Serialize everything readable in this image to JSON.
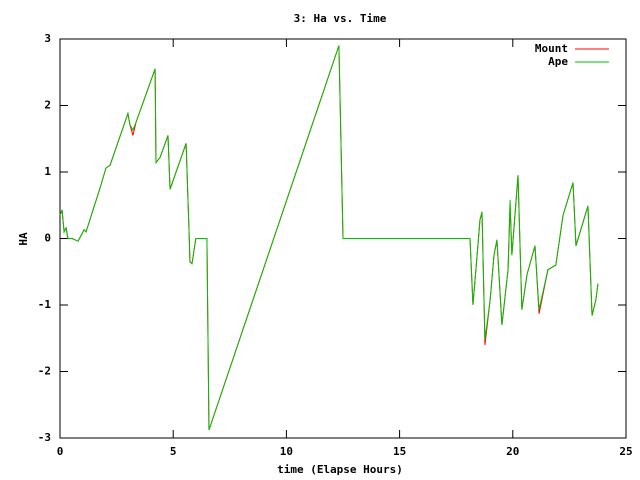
{
  "chart_data": {
    "type": "line",
    "title": "3: Ha vs. Time",
    "x_label": "time (Elapse Hours)",
    "y_label": "HA",
    "x": [
      0,
      0.09,
      0.18,
      0.27,
      0.35,
      0.53,
      0.8,
      1.06,
      1.15,
      1.77,
      2.03,
      2.21,
      3.0,
      3.09,
      3.22,
      3.36,
      4.2,
      4.24,
      4.42,
      4.77,
      4.86,
      5.57,
      5.7,
      5.74,
      5.83,
      6.0,
      6.49,
      6.58,
      12.32,
      12.5,
      18.11,
      18.24,
      18.46,
      18.55,
      18.64,
      18.77,
      19.0,
      19.17,
      19.3,
      19.52,
      19.79,
      19.88,
      19.96,
      20.23,
      20.4,
      20.63,
      20.98,
      21.16,
      21.55,
      21.9,
      22.22,
      22.66,
      22.79,
      23.32,
      23.5,
      23.67,
      23.76
    ],
    "series": [
      {
        "name": "Mount",
        "color": "#ff0000",
        "values": [
          0.35,
          0.43,
          0.1,
          0.16,
          0,
          0,
          -0.04,
          0.13,
          0.1,
          0.76,
          1.06,
          1.1,
          1.88,
          1.71,
          1.55,
          1.75,
          2.55,
          1.14,
          1.22,
          1.55,
          0.74,
          1.43,
          0.1,
          -0.35,
          -0.38,
          0,
          0,
          -2.88,
          2.9,
          0,
          0,
          -1.0,
          -0.1,
          0.28,
          0.4,
          -1.6,
          -0.92,
          -0.25,
          -0.02,
          -1.3,
          -0.47,
          0.5,
          -0.25,
          0.95,
          -1.07,
          -0.54,
          -0.11,
          -1.13,
          -0.47,
          -0.4,
          0.35,
          0.84,
          -0.11,
          0.49,
          -1.16,
          -0.92,
          -0.68
        ]
      },
      {
        "name": "Ape",
        "color": "#00c000",
        "values": [
          0.35,
          0.43,
          0.1,
          0.16,
          0,
          0,
          -0.04,
          0.13,
          0.1,
          0.76,
          1.06,
          1.1,
          1.88,
          1.71,
          1.63,
          1.75,
          2.55,
          1.14,
          1.22,
          1.55,
          0.74,
          1.43,
          0.1,
          -0.35,
          -0.38,
          0,
          0,
          -2.88,
          2.9,
          0,
          0,
          -1.0,
          -0.1,
          0.28,
          0.4,
          -1.52,
          -0.92,
          -0.25,
          -0.02,
          -1.3,
          -0.47,
          0.58,
          -0.25,
          0.95,
          -1.07,
          -0.54,
          -0.11,
          -1.07,
          -0.47,
          -0.4,
          0.35,
          0.84,
          -0.11,
          0.49,
          -1.16,
          -0.92,
          -0.68
        ]
      }
    ],
    "xlim": [
      0,
      25
    ],
    "xticks": [
      0,
      5,
      10,
      15,
      20,
      25
    ],
    "ylim": [
      -3,
      3
    ],
    "yticks": [
      -3,
      -2,
      -1,
      0,
      1,
      2,
      3
    ],
    "legend": "top-right",
    "grid": false
  }
}
